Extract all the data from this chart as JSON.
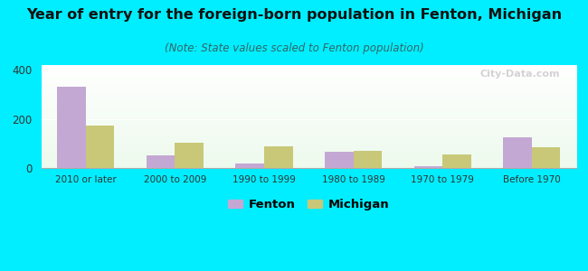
{
  "categories": [
    "2010 or later",
    "2000 to 2009",
    "1990 to 1999",
    "1980 to 1989",
    "1970 to 1979",
    "Before 1970"
  ],
  "fenton_values": [
    330,
    50,
    20,
    65,
    8,
    125
  ],
  "michigan_values": [
    175,
    105,
    90,
    70,
    55,
    85
  ],
  "fenton_color": "#c4a8d4",
  "michigan_color": "#c8c878",
  "title": "Year of entry for the foreign-born population in Fenton, Michigan",
  "subtitle": "(Note: State values scaled to Fenton population)",
  "title_fontsize": 11.5,
  "subtitle_fontsize": 8.5,
  "ylim": [
    0,
    420
  ],
  "yticks": [
    0,
    200,
    400
  ],
  "background_outer": "#00eeff",
  "legend_fenton": "Fenton",
  "legend_michigan": "Michigan",
  "bar_width": 0.32,
  "watermark": "City-Data.com"
}
